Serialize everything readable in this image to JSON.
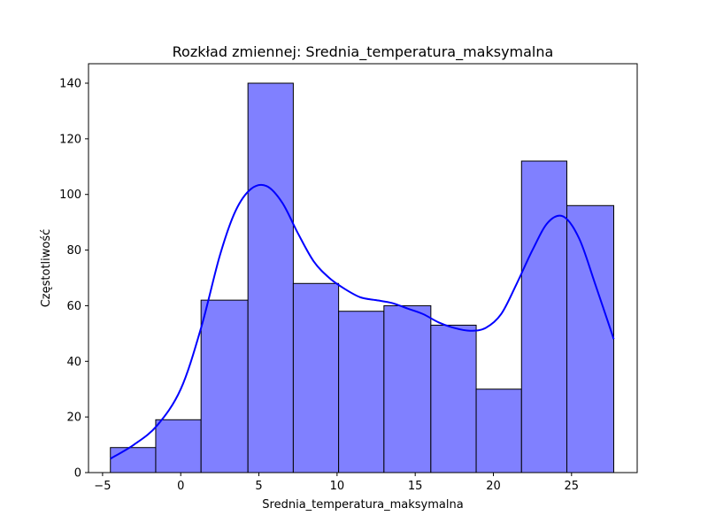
{
  "chart_data": {
    "type": "bar",
    "subtype": "histogram_with_kde",
    "title": "Rozkład zmiennej: Srednia_temperatura_maksymalna",
    "xlabel": "Srednia_temperatura_maksymalna",
    "ylabel": "Częstotliwość",
    "xlim": [
      -5.9,
      29.2
    ],
    "ylim": [
      0,
      147
    ],
    "xticks": [
      -5,
      0,
      5,
      10,
      15,
      20,
      25
    ],
    "yticks": [
      0,
      20,
      40,
      60,
      80,
      100,
      120,
      140
    ],
    "bins": [
      {
        "start": -4.5,
        "end": -1.6,
        "count": 9
      },
      {
        "start": -1.6,
        "end": 1.3,
        "count": 19
      },
      {
        "start": 1.3,
        "end": 4.3,
        "count": 62
      },
      {
        "start": 4.3,
        "end": 7.2,
        "count": 140
      },
      {
        "start": 7.2,
        "end": 10.1,
        "count": 68
      },
      {
        "start": 10.1,
        "end": 13.0,
        "count": 58
      },
      {
        "start": 13.0,
        "end": 16.0,
        "count": 60
      },
      {
        "start": 16.0,
        "end": 18.9,
        "count": 53
      },
      {
        "start": 18.9,
        "end": 21.8,
        "count": 30
      },
      {
        "start": 21.8,
        "end": 24.7,
        "count": 112
      },
      {
        "start": 24.7,
        "end": 27.7,
        "count": 96
      }
    ],
    "kde": {
      "x": [
        -4.5,
        -3.0,
        -1.5,
        0.0,
        1.3,
        2.5,
        3.5,
        4.5,
        5.5,
        6.5,
        7.5,
        8.5,
        9.5,
        10.5,
        11.5,
        12.5,
        13.5,
        14.5,
        15.5,
        16.5,
        17.5,
        18.5,
        19.5,
        20.5,
        21.5,
        22.5,
        23.5,
        24.5,
        25.5,
        26.5,
        27.7
      ],
      "y": [
        5,
        10,
        17,
        30,
        52,
        78,
        94,
        102,
        103,
        97,
        86,
        76,
        70,
        66,
        63,
        62,
        61,
        59,
        57,
        54,
        52,
        51,
        52,
        57,
        68,
        80,
        90,
        92,
        84,
        68,
        48
      ]
    },
    "colors": {
      "bar_fill": "#8080ff",
      "bar_edge": "#000000",
      "kde_line": "#0000ff"
    },
    "grid": false,
    "legend": "none"
  }
}
